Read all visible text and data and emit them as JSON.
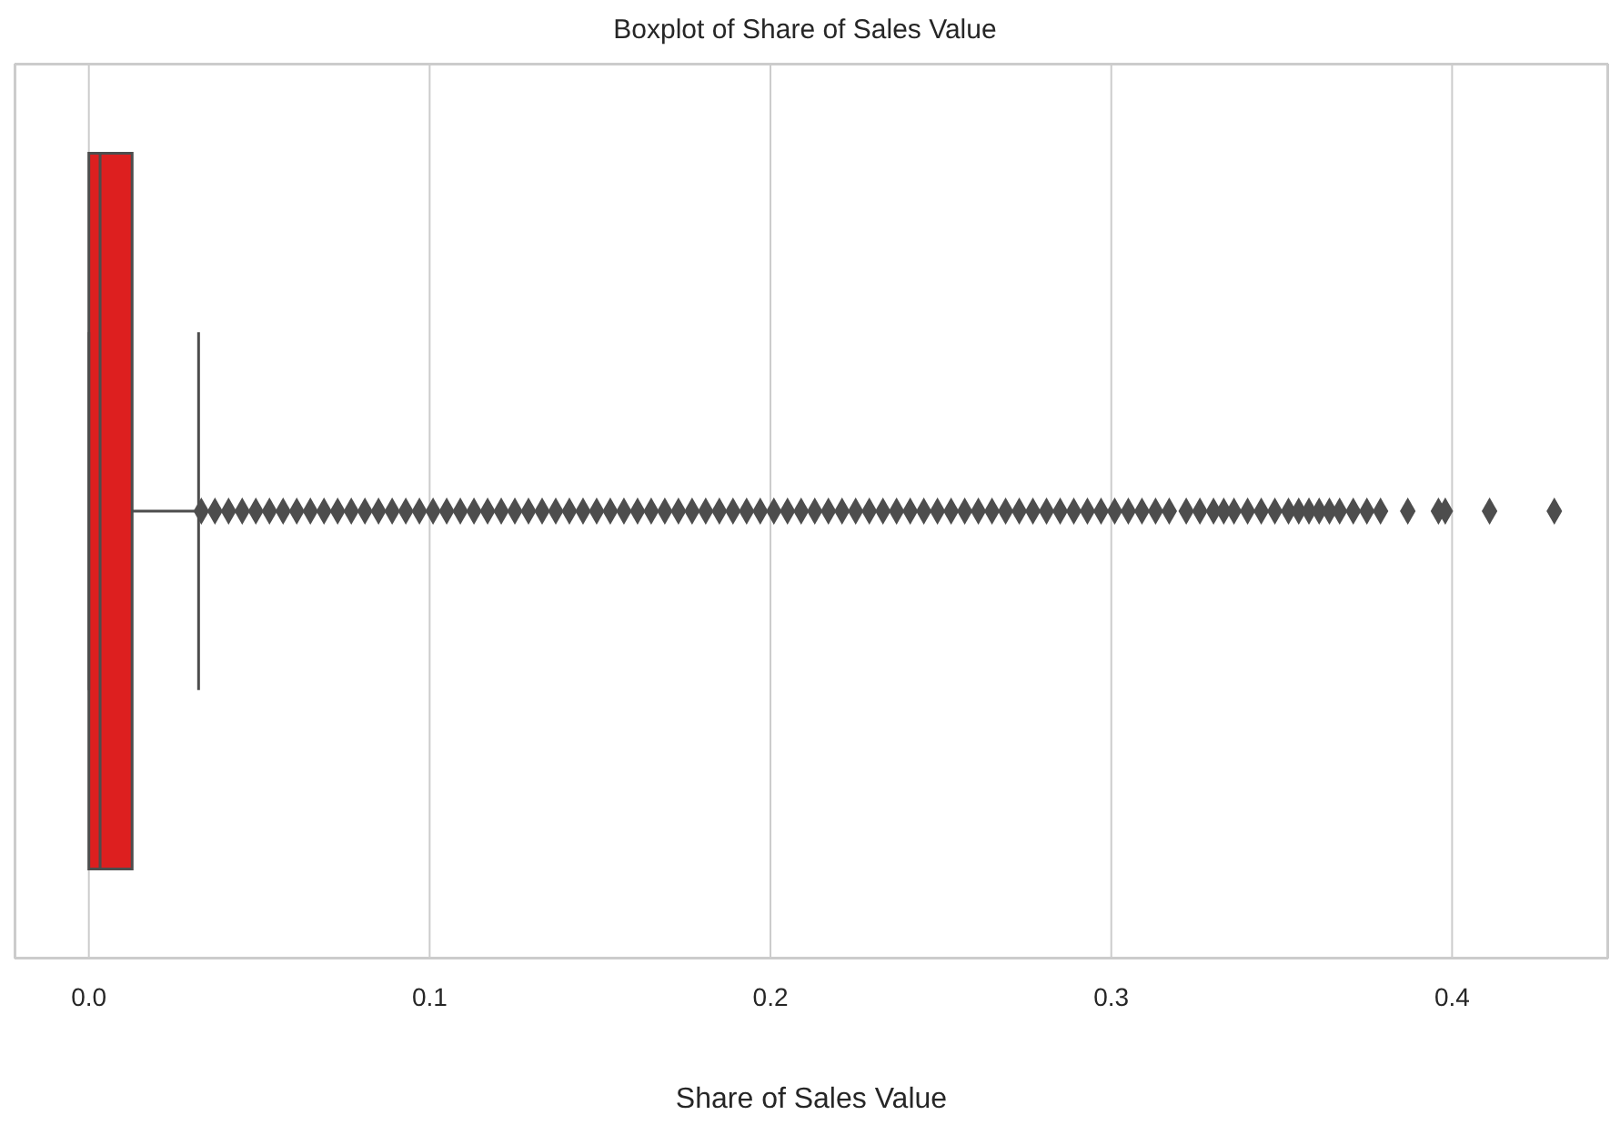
{
  "chart_data": {
    "type": "box",
    "title": "Boxplot of Share of Sales Value",
    "xlabel": "Share of Sales Value",
    "orientation": "horizontal",
    "categories": [
      null
    ],
    "tick_labels": "x",
    "grid": true,
    "marker": "diamond",
    "color": "#dd1f1f",
    "xlim": [
      -0.0218,
      0.4458
    ],
    "xticks": [
      {
        "value": 0,
        "label": "0.0"
      },
      0.1,
      0.2,
      0.3,
      0.4
    ],
    "boxes": [
      {
        "low": 0,
        "q1": 0,
        "median": 0.0033,
        "q3": 0.0127,
        "high": 0.0322,
        "outliers": [
          0.033,
          0.037,
          0.041,
          0.045,
          0.049,
          0.053,
          0.057,
          0.061,
          0.065,
          0.069,
          0.073,
          0.077,
          0.081,
          0.085,
          0.089,
          0.093,
          0.097,
          0.101,
          0.105,
          0.109,
          0.113,
          0.117,
          0.121,
          0.125,
          0.129,
          0.133,
          0.137,
          0.141,
          0.145,
          0.149,
          0.153,
          0.157,
          0.161,
          0.165,
          0.169,
          0.173,
          0.177,
          0.181,
          0.185,
          0.189,
          0.193,
          0.197,
          0.201,
          0.205,
          0.209,
          0.213,
          0.217,
          0.221,
          0.225,
          0.229,
          0.233,
          0.237,
          0.241,
          0.245,
          0.249,
          0.253,
          0.257,
          0.261,
          0.265,
          0.269,
          0.273,
          0.277,
          0.281,
          0.285,
          0.289,
          0.293,
          0.297,
          0.301,
          0.305,
          0.309,
          0.313,
          0.317,
          0.322,
          0.326,
          0.33,
          0.333,
          0.336,
          0.34,
          0.344,
          0.348,
          0.352,
          0.355,
          0.358,
          0.361,
          0.364,
          0.367,
          0.371,
          0.375,
          0.379,
          0.387,
          0.396,
          0.398,
          0.411,
          0.43
        ]
      }
    ]
  }
}
